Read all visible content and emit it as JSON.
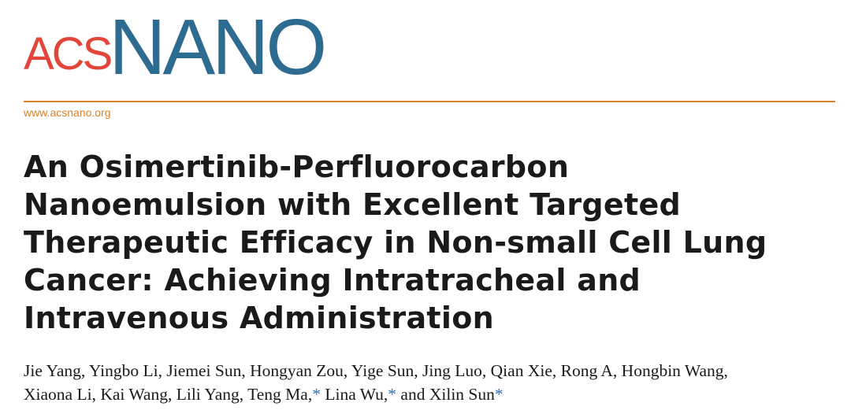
{
  "journal": {
    "logo_acs": "ACS",
    "logo_nano": "NANO",
    "url": "www.acsnano.org"
  },
  "title": {
    "lines": [
      "An Osimertinib-Perfluorocarbon",
      "Nanoemulsion with Excellent Targeted",
      "Therapeutic Efficacy in Non-small Cell Lung",
      "Cancer: Achieving Intratracheal and",
      "Intravenous Administration"
    ]
  },
  "authors": {
    "line1": "Jie Yang, Yingbo Li, Jiemei Sun, Hongyan Zou, Yige Sun, Jing Luo, Qian Xie, Rong A, Hongbin Wang,",
    "line2_part1": "Xiaona Li, Kai Wang, Lili Yang, Teng Ma,",
    "line2_part2": " Lina Wu,",
    "line2_part3": " and Xilin Sun",
    "corresponding_mark": "*"
  },
  "colors": {
    "acs_red": "#e2463a",
    "nano_blue": "#2e6b91",
    "rule_orange": "#d9822b",
    "link_blue": "#2a6fb5"
  }
}
